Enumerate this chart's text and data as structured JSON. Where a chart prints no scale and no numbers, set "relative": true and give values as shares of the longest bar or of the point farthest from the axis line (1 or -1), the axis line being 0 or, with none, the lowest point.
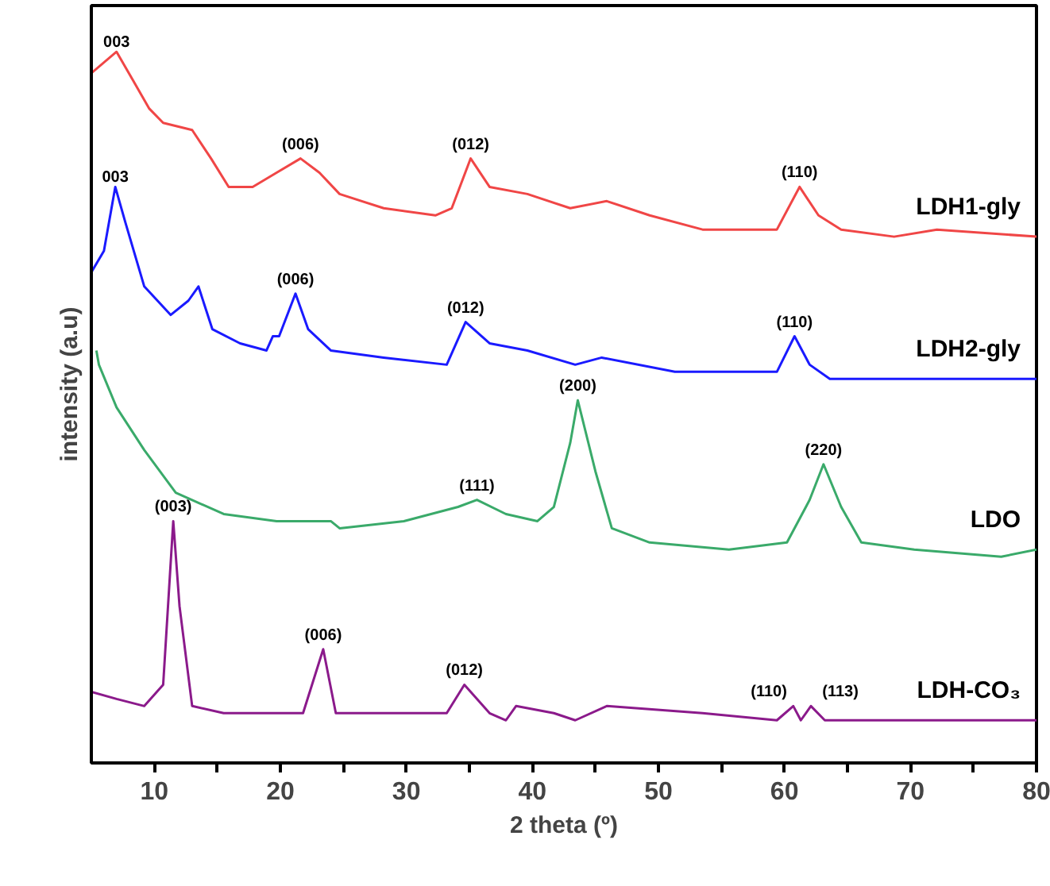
{
  "chart_data": {
    "type": "line",
    "relative": true,
    "xlabel": "2 theta (º)",
    "ylabel": "intensity (a.u)",
    "xlim": [
      5,
      80
    ],
    "xticks": [
      10,
      {
        "value": 15,
        "label": null
      },
      20,
      {
        "value": 25,
        "label": null
      },
      30,
      {
        "value": 35,
        "label": null
      },
      40,
      {
        "value": 45,
        "label": null
      },
      50,
      {
        "value": 55,
        "label": null
      },
      60,
      {
        "value": 65,
        "label": null
      },
      70,
      {
        "value": 75,
        "label": null
      },
      80
    ],
    "tick_labels": "x",
    "grid": false,
    "marker": "none",
    "line_style": "solid",
    "series": [
      {
        "name": "LDH1-gly",
        "color": "#f04646",
        "x": [
          5,
          7.0,
          8.3,
          9.6,
          10.7,
          13.0,
          14.5,
          15.9,
          17.8,
          19.7,
          21.6,
          23.1,
          24.7,
          28.2,
          32.3,
          33.6,
          35.1,
          36.6,
          39.6,
          43.0,
          45.9,
          49.3,
          53.5,
          59.4,
          61.2,
          62.7,
          64.5,
          68.7,
          72.1,
          80
        ],
        "values": [
          0.97,
          1.0,
          0.96,
          0.92,
          0.9,
          0.89,
          0.85,
          0.81,
          0.81,
          0.83,
          0.85,
          0.83,
          0.8,
          0.78,
          0.77,
          0.78,
          0.85,
          0.81,
          0.8,
          0.78,
          0.79,
          0.77,
          0.75,
          0.75,
          0.81,
          0.77,
          0.75,
          0.74,
          0.75,
          0.74
        ]
      },
      {
        "name": "LDH2-gly",
        "color": "#1a1aff",
        "x": [
          5,
          6.0,
          6.9,
          7.7,
          9.2,
          11.3,
          12.7,
          13.5,
          14.6,
          16.8,
          18.9,
          19.4,
          19.9,
          21.2,
          22.2,
          24.0,
          28.2,
          33.2,
          34.7,
          36.6,
          39.6,
          43.4,
          45.5,
          51.3,
          59.4,
          60.8,
          62.0,
          63.6,
          72.1,
          80
        ],
        "values": [
          0.69,
          0.72,
          0.81,
          0.76,
          0.67,
          0.63,
          0.65,
          0.67,
          0.61,
          0.59,
          0.58,
          0.6,
          0.6,
          0.66,
          0.61,
          0.58,
          0.57,
          0.56,
          0.62,
          0.59,
          0.58,
          0.56,
          0.57,
          0.55,
          0.55,
          0.6,
          0.56,
          0.54,
          0.54,
          0.54
        ]
      },
      {
        "name": "LDO",
        "color": "#3aaa6a",
        "x": [
          5.4,
          5.6,
          7.0,
          9.2,
          11.7,
          15.5,
          19.7,
          24.0,
          24.7,
          29.8,
          34.1,
          35.6,
          37.9,
          40.4,
          41.7,
          43.0,
          43.6,
          45.0,
          46.3,
          49.3,
          55.6,
          60.2,
          62.0,
          63.1,
          64.5,
          66.1,
          70.3,
          77.2,
          80
        ],
        "values": [
          0.58,
          0.56,
          0.5,
          0.44,
          0.38,
          0.35,
          0.34,
          0.34,
          0.33,
          0.34,
          0.36,
          0.37,
          0.35,
          0.34,
          0.36,
          0.45,
          0.51,
          0.41,
          0.33,
          0.31,
          0.3,
          0.31,
          0.37,
          0.42,
          0.36,
          0.31,
          0.3,
          0.29,
          0.3
        ]
      },
      {
        "name": "LDH-CO₃",
        "color": "#8b1a8b",
        "x": [
          5,
          7.0,
          9.2,
          10.7,
          11.5,
          12.0,
          13.0,
          15.5,
          21.8,
          23.4,
          24.4,
          28.2,
          33.2,
          34.6,
          36.6,
          37.9,
          38.7,
          41.7,
          43.4,
          45.9,
          53.5,
          59.4,
          60.7,
          61.3,
          62.1,
          63.2,
          66.1,
          70.3,
          80
        ],
        "values": [
          0.1,
          0.09,
          0.08,
          0.11,
          0.34,
          0.22,
          0.08,
          0.07,
          0.07,
          0.16,
          0.07,
          0.07,
          0.07,
          0.11,
          0.07,
          0.06,
          0.08,
          0.07,
          0.06,
          0.08,
          0.07,
          0.06,
          0.08,
          0.06,
          0.08,
          0.06,
          0.06,
          0.06,
          0.06
        ]
      }
    ],
    "annotations": [
      {
        "text": "003",
        "x": 7.0,
        "y": 1.0
      },
      {
        "text": "(006)",
        "x": 21.6,
        "y": 0.85
      },
      {
        "text": "(012)",
        "x": 35.1,
        "y": 0.85
      },
      {
        "text": "(110)",
        "x": 61.2,
        "y": 0.81
      },
      {
        "text": "003",
        "x": 6.9,
        "y": 0.81
      },
      {
        "text": "(006)",
        "x": 21.2,
        "y": 0.66
      },
      {
        "text": "(012)",
        "x": 34.7,
        "y": 0.62
      },
      {
        "text": "(110)",
        "x": 60.8,
        "y": 0.6
      },
      {
        "text": "(111)",
        "x": 35.6,
        "y": 0.37
      },
      {
        "text": "(200)",
        "x": 43.6,
        "y": 0.51
      },
      {
        "text": "(220)",
        "x": 63.1,
        "y": 0.42
      },
      {
        "text": "(003)",
        "x": 11.5,
        "y": 0.34
      },
      {
        "text": "(006)",
        "x": 23.4,
        "y": 0.16
      },
      {
        "text": "(012)",
        "x": 34.6,
        "y": 0.11
      },
      {
        "text": "(110)",
        "x": 60.2,
        "y": 0.08
      },
      {
        "text": "(113)",
        "x": 63.0,
        "y": 0.08
      }
    ]
  }
}
